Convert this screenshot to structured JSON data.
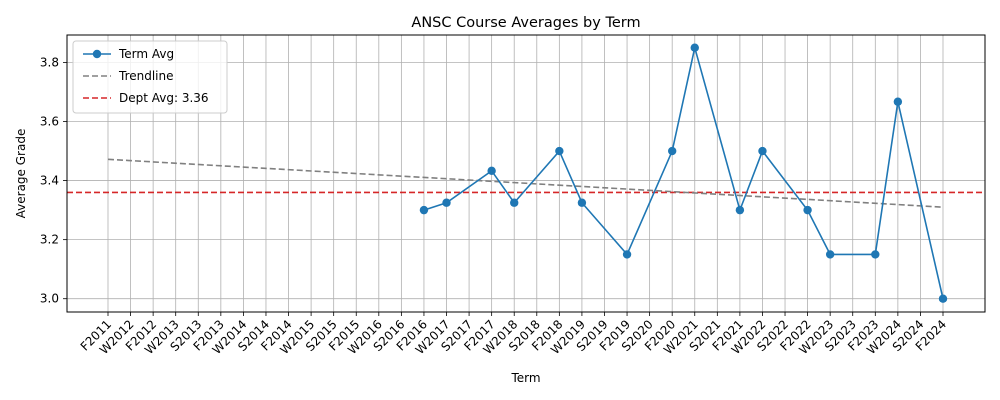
{
  "chart_data": {
    "type": "line",
    "title": "ANSC Course Averages by Term",
    "xlabel": "Term",
    "ylabel": "Average Grade",
    "categories": [
      "F2011",
      "W2012",
      "F2012",
      "W2013",
      "S2013",
      "F2013",
      "W2014",
      "S2014",
      "F2014",
      "W2015",
      "S2015",
      "F2015",
      "W2016",
      "S2016",
      "F2016",
      "W2017",
      "S2017",
      "F2017",
      "W2018",
      "S2018",
      "F2018",
      "W2019",
      "S2019",
      "F2019",
      "S2020",
      "F2020",
      "W2021",
      "S2021",
      "F2021",
      "W2022",
      "S2022",
      "F2022",
      "W2023",
      "S2023",
      "F2023",
      "W2024",
      "S2024",
      "F2024"
    ],
    "series": [
      {
        "name": "Term Avg",
        "color": "#1f77b4",
        "values": [
          null,
          null,
          null,
          null,
          null,
          null,
          null,
          null,
          null,
          null,
          null,
          null,
          null,
          null,
          3.3,
          3.325,
          null,
          3.433,
          3.325,
          null,
          3.5,
          3.325,
          null,
          3.15,
          null,
          3.5,
          3.85,
          null,
          3.3,
          3.5,
          null,
          3.3,
          3.15,
          null,
          3.15,
          3.667,
          null,
          3.0
        ]
      }
    ],
    "trendline": {
      "name": "Trendline",
      "color": "#808080",
      "start": 3.472,
      "end": 3.31
    },
    "reference_line": {
      "name": "Dept Avg: 3.36",
      "value": 3.36,
      "color": "#d62728"
    },
    "ylim": [
      2.955,
      3.893
    ],
    "yticks": [
      3.0,
      3.2,
      3.4,
      3.6,
      3.8
    ],
    "ytick_labels": [
      "3.0",
      "3.2",
      "3.4",
      "3.6",
      "3.8"
    ],
    "grid": true,
    "legend_position": "top-left"
  }
}
